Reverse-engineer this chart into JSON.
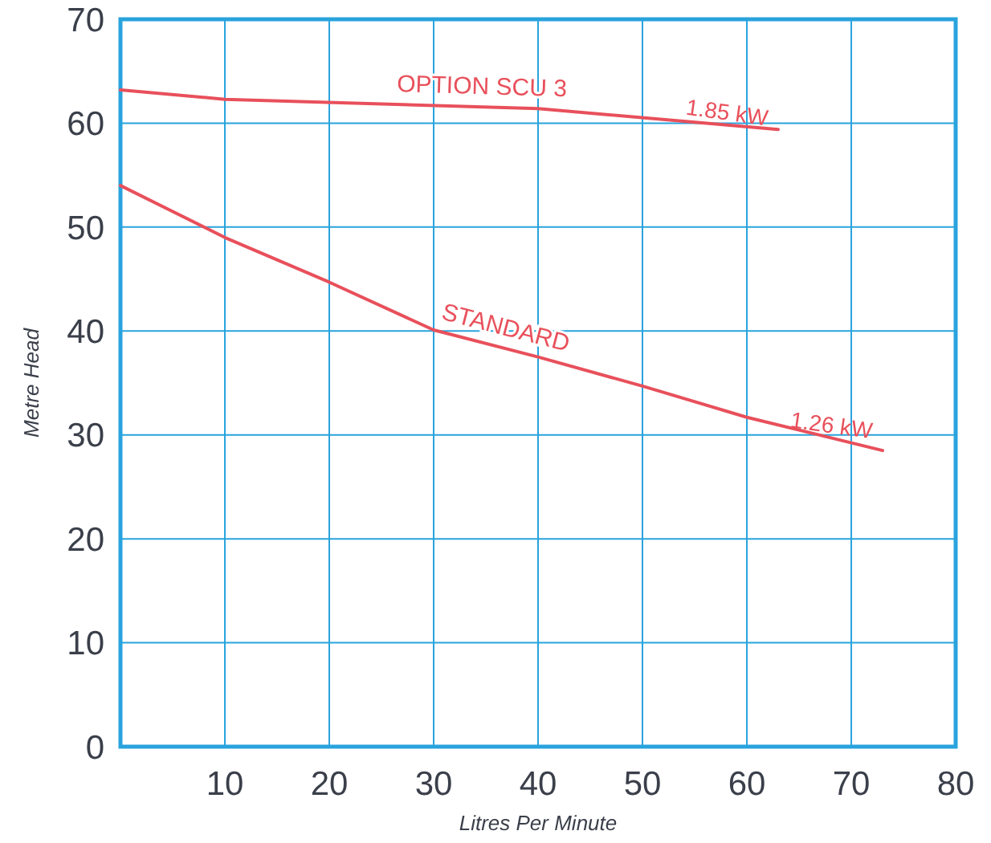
{
  "chart_data": {
    "type": "line",
    "xlabel": "Litres Per Minute",
    "ylabel": "Metre Head",
    "xlim": [
      0,
      80
    ],
    "xticks": [
      10,
      20,
      30,
      40,
      50,
      60,
      70,
      80
    ],
    "ylim": [
      0,
      70
    ],
    "yticks": [
      0,
      10,
      20,
      30,
      40,
      50,
      60,
      70
    ],
    "grid": true,
    "marker": "none",
    "line_style": "solid",
    "series": [
      {
        "name": "OPTION SCU 3",
        "color": "#e8505b",
        "x": [
          0,
          10,
          40,
          63
        ],
        "values": [
          63.2,
          62.3,
          61.4,
          59.4
        ]
      },
      {
        "name": "STANDARD",
        "color": "#e8505b",
        "x": [
          0,
          10,
          20,
          30,
          40,
          50,
          60,
          73
        ],
        "values": [
          54,
          49,
          44.7,
          40.1,
          37.5,
          34.7,
          31.7,
          28.5
        ]
      }
    ],
    "annotations": [
      {
        "text": "1.85 kW",
        "x": 58,
        "y": 60.3
      },
      {
        "text": "1.26 kW",
        "x": 68,
        "y": 30.2
      }
    ]
  }
}
